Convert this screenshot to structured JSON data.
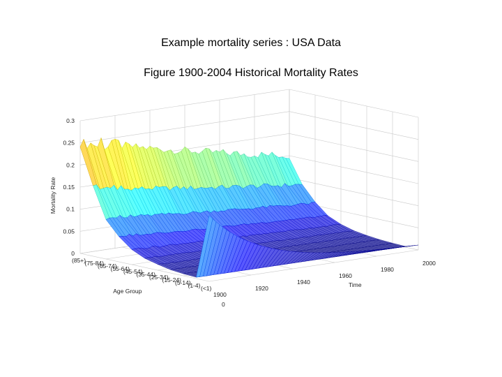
{
  "slide": {
    "title": "Example mortality series : USA Data",
    "subtitle": "Figure 1900-2004 Historical Mortality Rates"
  },
  "chart_data": {
    "type": "surface",
    "xlabel": "Time",
    "ylabel": "Age Group",
    "zlabel": "Mortality Rate",
    "xlim": [
      1900,
      2000
    ],
    "zlim": [
      0,
      0.3
    ],
    "x_ticks": [
      "1900",
      "1920",
      "1940",
      "1960",
      "1980",
      "2000"
    ],
    "z_ticks": [
      "0",
      "0.05",
      "0.1",
      "0.15",
      "0.2",
      "0.25",
      "0.3"
    ],
    "age_groups": [
      "(85+)",
      "(75-84)",
      "(65-74)",
      "(55-64)",
      "(45-54)",
      "(35-44)",
      "(25-34)",
      "(15-24)",
      "(5-14)",
      "(1-4)",
      "(<1)"
    ],
    "age_tick_zero": "0",
    "grid": true,
    "colormap": "jet",
    "surface_summary": {
      "peak_oldest_age_1900": 0.26,
      "peak_oldest_age_2000": 0.15,
      "infant_1900": 0.14,
      "infant_2000": 0.007
    }
  }
}
